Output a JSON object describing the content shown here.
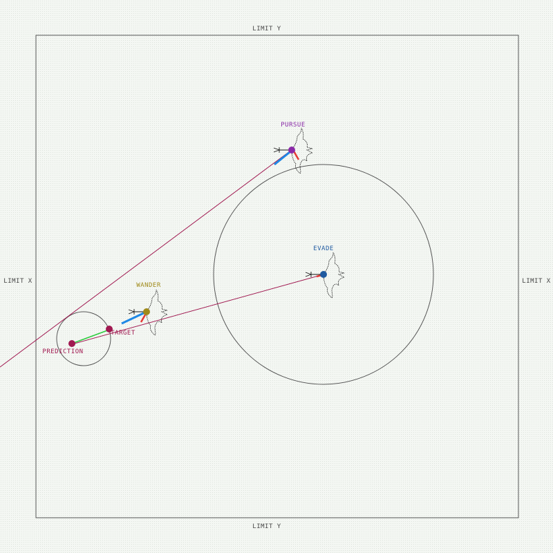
{
  "labels": {
    "limit_x_left": "LIMIT X",
    "limit_x_right": "LIMIT X",
    "limit_y_top": "LIMIT Y",
    "limit_y_bottom": "LIMIT Y",
    "pursue": "PURSUE",
    "evade": "EVADE",
    "wander": "WANDER",
    "target": "TARGET",
    "prediction": "PREDICTION"
  },
  "colors": {
    "background": "#f4f7f3",
    "boundary": "#555555",
    "pursue": "#8a2aa8",
    "evade": "#1f5aa0",
    "wander": "#a08a1a",
    "target": "#a01850",
    "prediction": "#a01850",
    "trace_line": "#a01850",
    "velocity": "#1e88e5",
    "steering": "#e53935",
    "seek": "#2ecc40"
  },
  "icons": {
    "agent": "bird-icon"
  }
}
